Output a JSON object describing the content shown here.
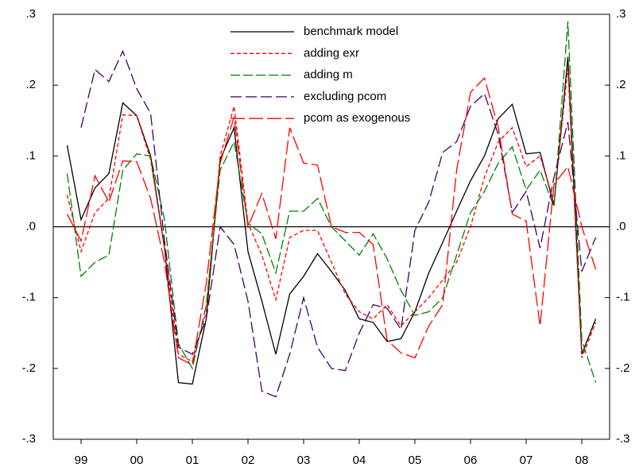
{
  "chart_data": {
    "type": "line",
    "x": [
      1999.25,
      1999.5,
      1999.75,
      2000,
      2000.25,
      2000.5,
      2000.75,
      2001,
      2001.25,
      2001.5,
      2001.75,
      2002,
      2002.25,
      2002.5,
      2002.75,
      2003,
      2003.25,
      2003.5,
      2003.75,
      2004,
      2004.25,
      2004.5,
      2004.75,
      2005,
      2005.25,
      2005.5,
      2005.75,
      2006,
      2006.25,
      2006.5,
      2006.75,
      2007,
      2007.25,
      2007.5,
      2007.75,
      2008,
      2008.25,
      2008.5,
      2008.75
    ],
    "xlim": [
      1999,
      2009
    ],
    "xticks": [
      {
        "value": 1999.5,
        "label": "99"
      },
      {
        "value": 2000.5,
        "label": "00"
      },
      {
        "value": 2001.5,
        "label": "01"
      },
      {
        "value": 2002.5,
        "label": "02"
      },
      {
        "value": 2003.5,
        "label": "03"
      },
      {
        "value": 2004.5,
        "label": "04"
      },
      {
        "value": 2005.5,
        "label": "05"
      },
      {
        "value": 2006.5,
        "label": "06"
      },
      {
        "value": 2007.5,
        "label": "07"
      },
      {
        "value": 2008.5,
        "label": "08"
      }
    ],
    "ylim": [
      -0.3,
      0.3
    ],
    "yticks": [
      {
        "value": -0.3,
        "label": "-.3"
      },
      {
        "value": -0.2,
        "label": "-.2"
      },
      {
        "value": -0.1,
        "label": "-.1"
      },
      {
        "value": 0,
        "label": ".0"
      },
      {
        "value": 0.1,
        "label": ".1"
      },
      {
        "value": 0.2,
        "label": ".2"
      },
      {
        "value": 0.3,
        "label": ".3"
      }
    ],
    "zero_line": true,
    "series": [
      {
        "name": "benchmark model",
        "color": "#000000",
        "dash": "none",
        "values": [
          0.115,
          0.01,
          0.055,
          0.075,
          0.175,
          0.157,
          0.1,
          -0.03,
          -0.22,
          -0.222,
          -0.13,
          0.095,
          0.14,
          -0.035,
          -0.105,
          -0.18,
          -0.095,
          -0.07,
          -0.038,
          -0.063,
          -0.09,
          -0.13,
          -0.135,
          -0.162,
          -0.158,
          -0.12,
          -0.065,
          -0.022,
          0.022,
          0.065,
          0.1,
          0.153,
          0.173,
          0.103,
          0.105,
          0.03,
          0.24,
          -0.18,
          -0.13
        ]
      },
      {
        "name": "adding exr",
        "color": "#ff0000",
        "dash": "5 3",
        "values": [
          0.045,
          -0.035,
          0.02,
          0.04,
          0.158,
          0.157,
          0.095,
          -0.03,
          -0.18,
          -0.19,
          -0.12,
          0.1,
          0.17,
          0.005,
          -0.04,
          -0.103,
          -0.015,
          -0.005,
          -0.005,
          -0.05,
          -0.095,
          -0.12,
          -0.13,
          -0.11,
          -0.14,
          -0.12,
          -0.1,
          -0.075,
          -0.05,
          0.0,
          0.07,
          0.12,
          0.14,
          0.085,
          0.1,
          0.035,
          0.225,
          -0.185,
          -0.135
        ]
      },
      {
        "name": "adding m",
        "color": "#008000",
        "dash": "12 4",
        "values": [
          0.075,
          -0.07,
          -0.05,
          -0.04,
          0.08,
          0.103,
          0.1,
          0.01,
          -0.165,
          -0.2,
          -0.11,
          0.08,
          0.12,
          0.005,
          -0.01,
          -0.065,
          0.022,
          0.022,
          0.04,
          0.0,
          -0.02,
          -0.04,
          -0.01,
          -0.045,
          -0.09,
          -0.125,
          -0.12,
          -0.1,
          -0.04,
          0.02,
          0.05,
          0.09,
          0.113,
          0.052,
          0.08,
          0.028,
          0.29,
          -0.16,
          -0.22
        ]
      },
      {
        "name": "excluding pcom",
        "color": "#400060",
        "dash": "14 5",
        "values": [
          null,
          0.14,
          0.222,
          0.205,
          0.248,
          0.195,
          0.16,
          -0.02,
          -0.17,
          -0.18,
          -0.13,
          0.0,
          -0.025,
          -0.105,
          -0.232,
          -0.24,
          -0.18,
          -0.1,
          -0.17,
          -0.2,
          -0.203,
          -0.15,
          -0.11,
          -0.115,
          -0.145,
          -0.005,
          0.035,
          0.105,
          0.12,
          0.17,
          0.188,
          0.13,
          0.02,
          0.05,
          -0.03,
          0.07,
          0.148,
          -0.063,
          -0.015
        ]
      },
      {
        "name": "pcom as exogenous",
        "color": "#ff0000",
        "dash": "18 5",
        "values": [
          0.018,
          -0.02,
          0.072,
          0.035,
          0.093,
          0.092,
          0.04,
          -0.05,
          -0.185,
          -0.195,
          -0.08,
          0.09,
          0.155,
          0.0,
          0.047,
          -0.017,
          0.14,
          0.09,
          0.087,
          0.0,
          -0.008,
          -0.008,
          -0.025,
          -0.16,
          -0.178,
          -0.185,
          -0.14,
          -0.11,
          0.08,
          0.19,
          0.21,
          0.14,
          0.018,
          0.008,
          -0.14,
          0.06,
          0.085,
          0.0,
          -0.06
        ]
      }
    ]
  }
}
